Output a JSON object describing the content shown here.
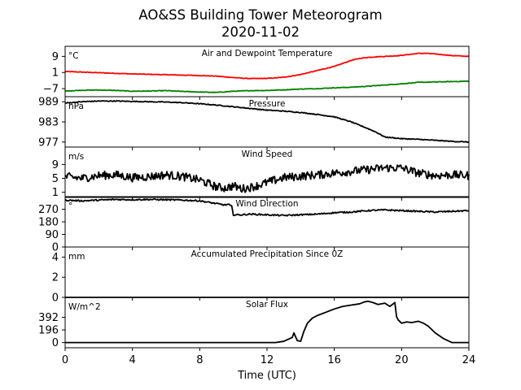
{
  "title": "AO&SS Building Tower Meteorogram",
  "subtitle": "2020-11-02",
  "xlabel": "Time (UTC)",
  "x_ticks": [
    0,
    4,
    8,
    12,
    16,
    20,
    24
  ],
  "chart_data": [
    {
      "type": "line",
      "title": "Air and Dewpoint Temperature",
      "unit": "°C",
      "xlim": [
        0,
        24
      ],
      "ylim": [
        -11,
        14
      ],
      "y_ticks": [
        -7,
        1,
        9
      ],
      "y_tick_labels": [
        "−7",
        "1",
        "9"
      ],
      "series": [
        {
          "key": "air",
          "color": "#ff0000",
          "noise": 0.15,
          "x": [
            0,
            1,
            2,
            3,
            4,
            5,
            6,
            7,
            8,
            9,
            10,
            10.5,
            11,
            11.5,
            12,
            12.5,
            13,
            13.5,
            14,
            14.5,
            15,
            15.5,
            16,
            16.5,
            17,
            17.5,
            18,
            18.5,
            19,
            19.5,
            20,
            20.5,
            21,
            21.5,
            22,
            22.5,
            23,
            23.5,
            24
          ],
          "y": [
            1.5,
            1.2,
            0.9,
            0.6,
            0.3,
            0.1,
            -0.1,
            -0.3,
            -0.5,
            -0.8,
            -1.5,
            -1.8,
            -2.0,
            -2.0,
            -1.9,
            -1.7,
            -1.3,
            -0.7,
            0.0,
            1.0,
            2.0,
            3.0,
            4.0,
            5.5,
            7.0,
            8.0,
            8.5,
            8.8,
            9.0,
            9.2,
            9.5,
            10.0,
            10.5,
            10.5,
            10.2,
            9.8,
            9.4,
            9.2,
            9.0
          ]
        },
        {
          "key": "dew",
          "color": "#008000",
          "noise": 0.15,
          "x": [
            0,
            1,
            2,
            3,
            4,
            5,
            6,
            7,
            8,
            9,
            10,
            11,
            12,
            13,
            14,
            15,
            16,
            17,
            18,
            19,
            20,
            21,
            22,
            23,
            24
          ],
          "y": [
            -8.2,
            -7.8,
            -7.7,
            -7.9,
            -8.3,
            -8.2,
            -8.0,
            -8.4,
            -8.7,
            -8.9,
            -8.3,
            -8.0,
            -7.9,
            -7.6,
            -7.2,
            -7.0,
            -6.6,
            -6.3,
            -5.8,
            -5.2,
            -4.6,
            -3.9,
            -3.7,
            -3.5,
            -3.3
          ]
        }
      ]
    },
    {
      "type": "line",
      "title": "Pressure",
      "unit": "hPa",
      "xlim": [
        0,
        24
      ],
      "ylim": [
        975.5,
        990.5
      ],
      "y_ticks": [
        977,
        983,
        989
      ],
      "y_tick_labels": [
        "977",
        "983",
        "989"
      ],
      "series": [
        {
          "key": "pres",
          "color": "#000000",
          "noise": 0.12,
          "x": [
            0,
            1,
            2,
            3,
            4,
            5,
            6,
            7,
            8,
            9,
            10,
            11,
            12,
            13,
            14,
            15,
            16,
            17,
            18,
            18.5,
            19,
            20,
            21,
            22,
            23,
            24
          ],
          "y": [
            988.6,
            989.0,
            989.2,
            989.2,
            989.1,
            989.0,
            988.9,
            988.7,
            988.4,
            988.0,
            987.5,
            987.0,
            986.5,
            986.2,
            985.8,
            985.2,
            984.5,
            983.0,
            981.0,
            979.9,
            978.5,
            978.0,
            977.8,
            977.5,
            977.2,
            977.0
          ]
        }
      ]
    },
    {
      "type": "line",
      "title": "Wind Speed",
      "unit": "m/s",
      "xlim": [
        0,
        24
      ],
      "ylim": [
        -0.5,
        14
      ],
      "y_ticks": [
        1,
        5,
        9
      ],
      "y_tick_labels": [
        "1",
        "5",
        "9"
      ],
      "series": [
        {
          "key": "ws",
          "color": "#000000",
          "noise": 1.2,
          "x": [
            0,
            1,
            2,
            3,
            4,
            5,
            6,
            7,
            8,
            8.5,
            9,
            9.5,
            10,
            10.5,
            11,
            11.5,
            12,
            13,
            14,
            15,
            16,
            17,
            18,
            19,
            20,
            21,
            22,
            23,
            24
          ],
          "y": [
            5.5,
            5.0,
            5.8,
            6.0,
            5.2,
            5.5,
            6.0,
            5.5,
            4.5,
            3.5,
            2.5,
            2.2,
            2.8,
            2.0,
            2.4,
            3.0,
            3.8,
            5.2,
            5.6,
            6.0,
            6.5,
            7.0,
            7.5,
            8.0,
            8.0,
            6.5,
            5.8,
            6.0,
            5.8
          ]
        }
      ]
    },
    {
      "type": "line",
      "title": "Wind Direction",
      "unit": "°",
      "xlim": [
        0,
        24
      ],
      "ylim": [
        0,
        360
      ],
      "y_ticks": [
        0,
        90,
        180,
        270
      ],
      "y_tick_labels": [
        "0",
        "90",
        "180",
        "270"
      ],
      "series": [
        {
          "key": "wd",
          "color": "#000000",
          "noise": 5,
          "x": [
            0,
            1,
            2,
            3,
            4,
            5,
            6,
            7,
            8,
            8.5,
            9,
            9.5,
            9.7,
            9.9,
            10.0,
            10.5,
            11,
            12,
            13,
            14,
            15,
            16,
            17,
            18,
            19,
            20,
            21,
            22,
            23,
            24
          ],
          "y": [
            335,
            330,
            335,
            340,
            338,
            340,
            338,
            335,
            330,
            320,
            310,
            300,
            305,
            290,
            230,
            230,
            235,
            230,
            225,
            230,
            235,
            245,
            250,
            260,
            265,
            260,
            255,
            250,
            255,
            260
          ]
        }
      ]
    },
    {
      "type": "line",
      "title": "Accumulated Precipitation Since 0Z",
      "unit": "mm",
      "xlim": [
        0,
        24
      ],
      "ylim": [
        0,
        5
      ],
      "y_ticks": [
        0,
        2,
        4
      ],
      "y_tick_labels": [
        "0",
        "2",
        "4"
      ],
      "series": [
        {
          "key": "precip",
          "color": "#000000",
          "noise": 0,
          "x": [
            0,
            24
          ],
          "y": [
            0,
            0
          ]
        }
      ]
    },
    {
      "type": "line",
      "title": "Solar Flux",
      "unit": "W/m^2",
      "xlim": [
        0,
        24
      ],
      "ylim": [
        -80,
        700
      ],
      "y_ticks": [
        0,
        196,
        392
      ],
      "y_tick_labels": [
        "0",
        "196",
        "392"
      ],
      "series": [
        {
          "key": "solar",
          "color": "#000000",
          "noise": 0,
          "x": [
            0,
            12.5,
            13.0,
            13.5,
            13.6,
            13.8,
            14.0,
            14.2,
            14.4,
            14.7,
            15.0,
            15.5,
            16.0,
            16.5,
            17.0,
            17.5,
            17.8,
            18.0,
            18.3,
            18.6,
            19.0,
            19.3,
            19.6,
            19.7,
            19.8,
            20.0,
            20.3,
            20.6,
            21.0,
            21.3,
            21.6,
            22.0,
            22.5,
            23.0,
            23.5,
            24
          ],
          "y": [
            0,
            0,
            20,
            80,
            150,
            30,
            20,
            180,
            300,
            380,
            420,
            470,
            520,
            560,
            580,
            600,
            630,
            640,
            620,
            590,
            610,
            560,
            620,
            400,
            350,
            300,
            320,
            310,
            330,
            300,
            250,
            150,
            60,
            0,
            0,
            0
          ]
        }
      ]
    }
  ]
}
